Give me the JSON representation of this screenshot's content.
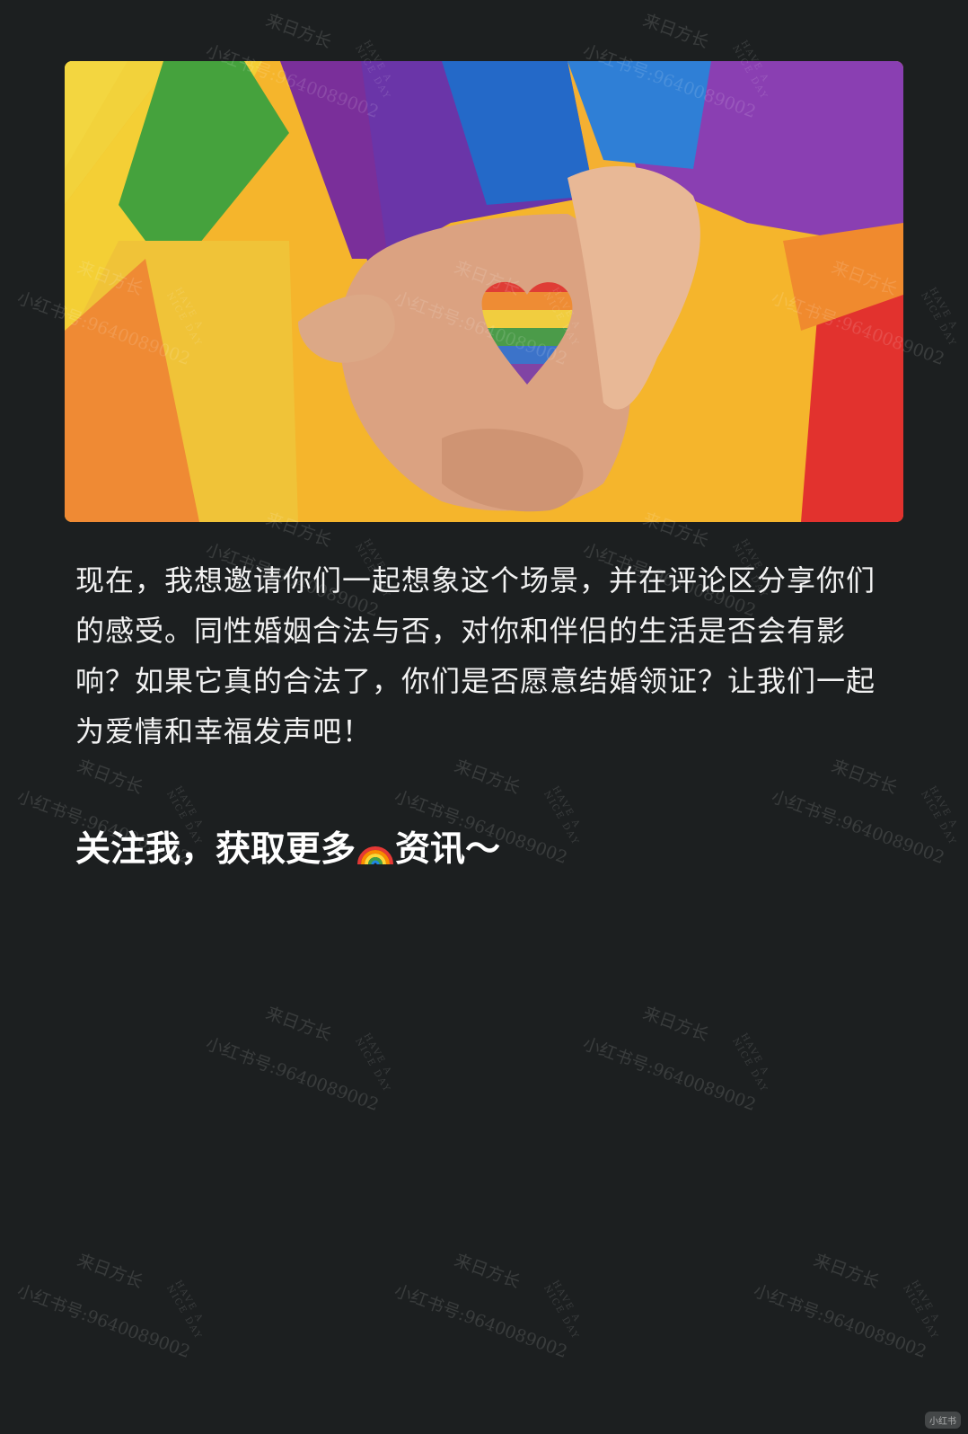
{
  "post": {
    "paragraph": "现在，我想邀请你们一起想象这个场景，并在评论区分享你们的感受。同性婚姻合法与否，对你和伴侣的生活是否会有影响？如果它真的合法了，你们是否愿意结婚领证？让我们一起为爱情和幸福发声吧！",
    "cta_before": "关注我，获取更多",
    "cta_emoji": "rainbow-emoji",
    "cta_after": "资讯～"
  },
  "watermark": {
    "line1": "来日方长",
    "line2": "小红书号:9640089002",
    "line3": "HAVE A NICE DAY"
  },
  "corner_mark": "小红书"
}
